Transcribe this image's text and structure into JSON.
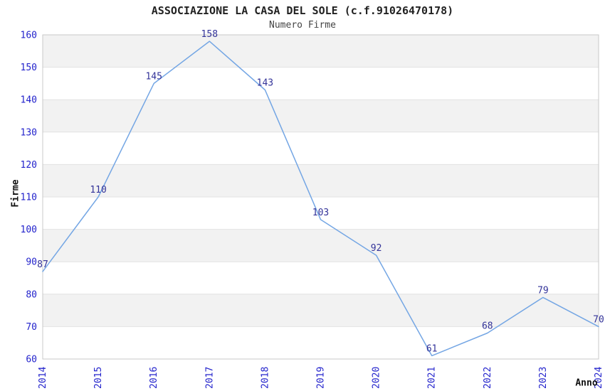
{
  "chart_data": {
    "type": "line",
    "title": "ASSOCIAZIONE LA CASA DEL SOLE (c.f.91026470178)",
    "subtitle": "Numero Firme",
    "xlabel": "Anno",
    "ylabel": "Firme",
    "categories": [
      "2014",
      "2015",
      "2016",
      "2017",
      "2018",
      "2019",
      "2020",
      "2021",
      "2022",
      "2023",
      "2024"
    ],
    "values": [
      87,
      110,
      145,
      158,
      143,
      103,
      92,
      61,
      68,
      79,
      70
    ],
    "ylim": [
      60,
      160
    ],
    "ytick_step": 10,
    "yticks": [
      60,
      70,
      80,
      90,
      100,
      110,
      120,
      130,
      140,
      150,
      160
    ],
    "legend": "none",
    "grid": "horizontal-bands",
    "colors": {
      "line": "#74a6e4",
      "tick_labels": "#2323cc",
      "data_labels": "#333399",
      "band": "#f2f2f2",
      "gridline": "#e2e2e2",
      "plot_border": "#c8c8c8",
      "title": "#222222",
      "subtitle": "#444444",
      "axis_title": "#111111",
      "background": "#ffffff"
    }
  }
}
